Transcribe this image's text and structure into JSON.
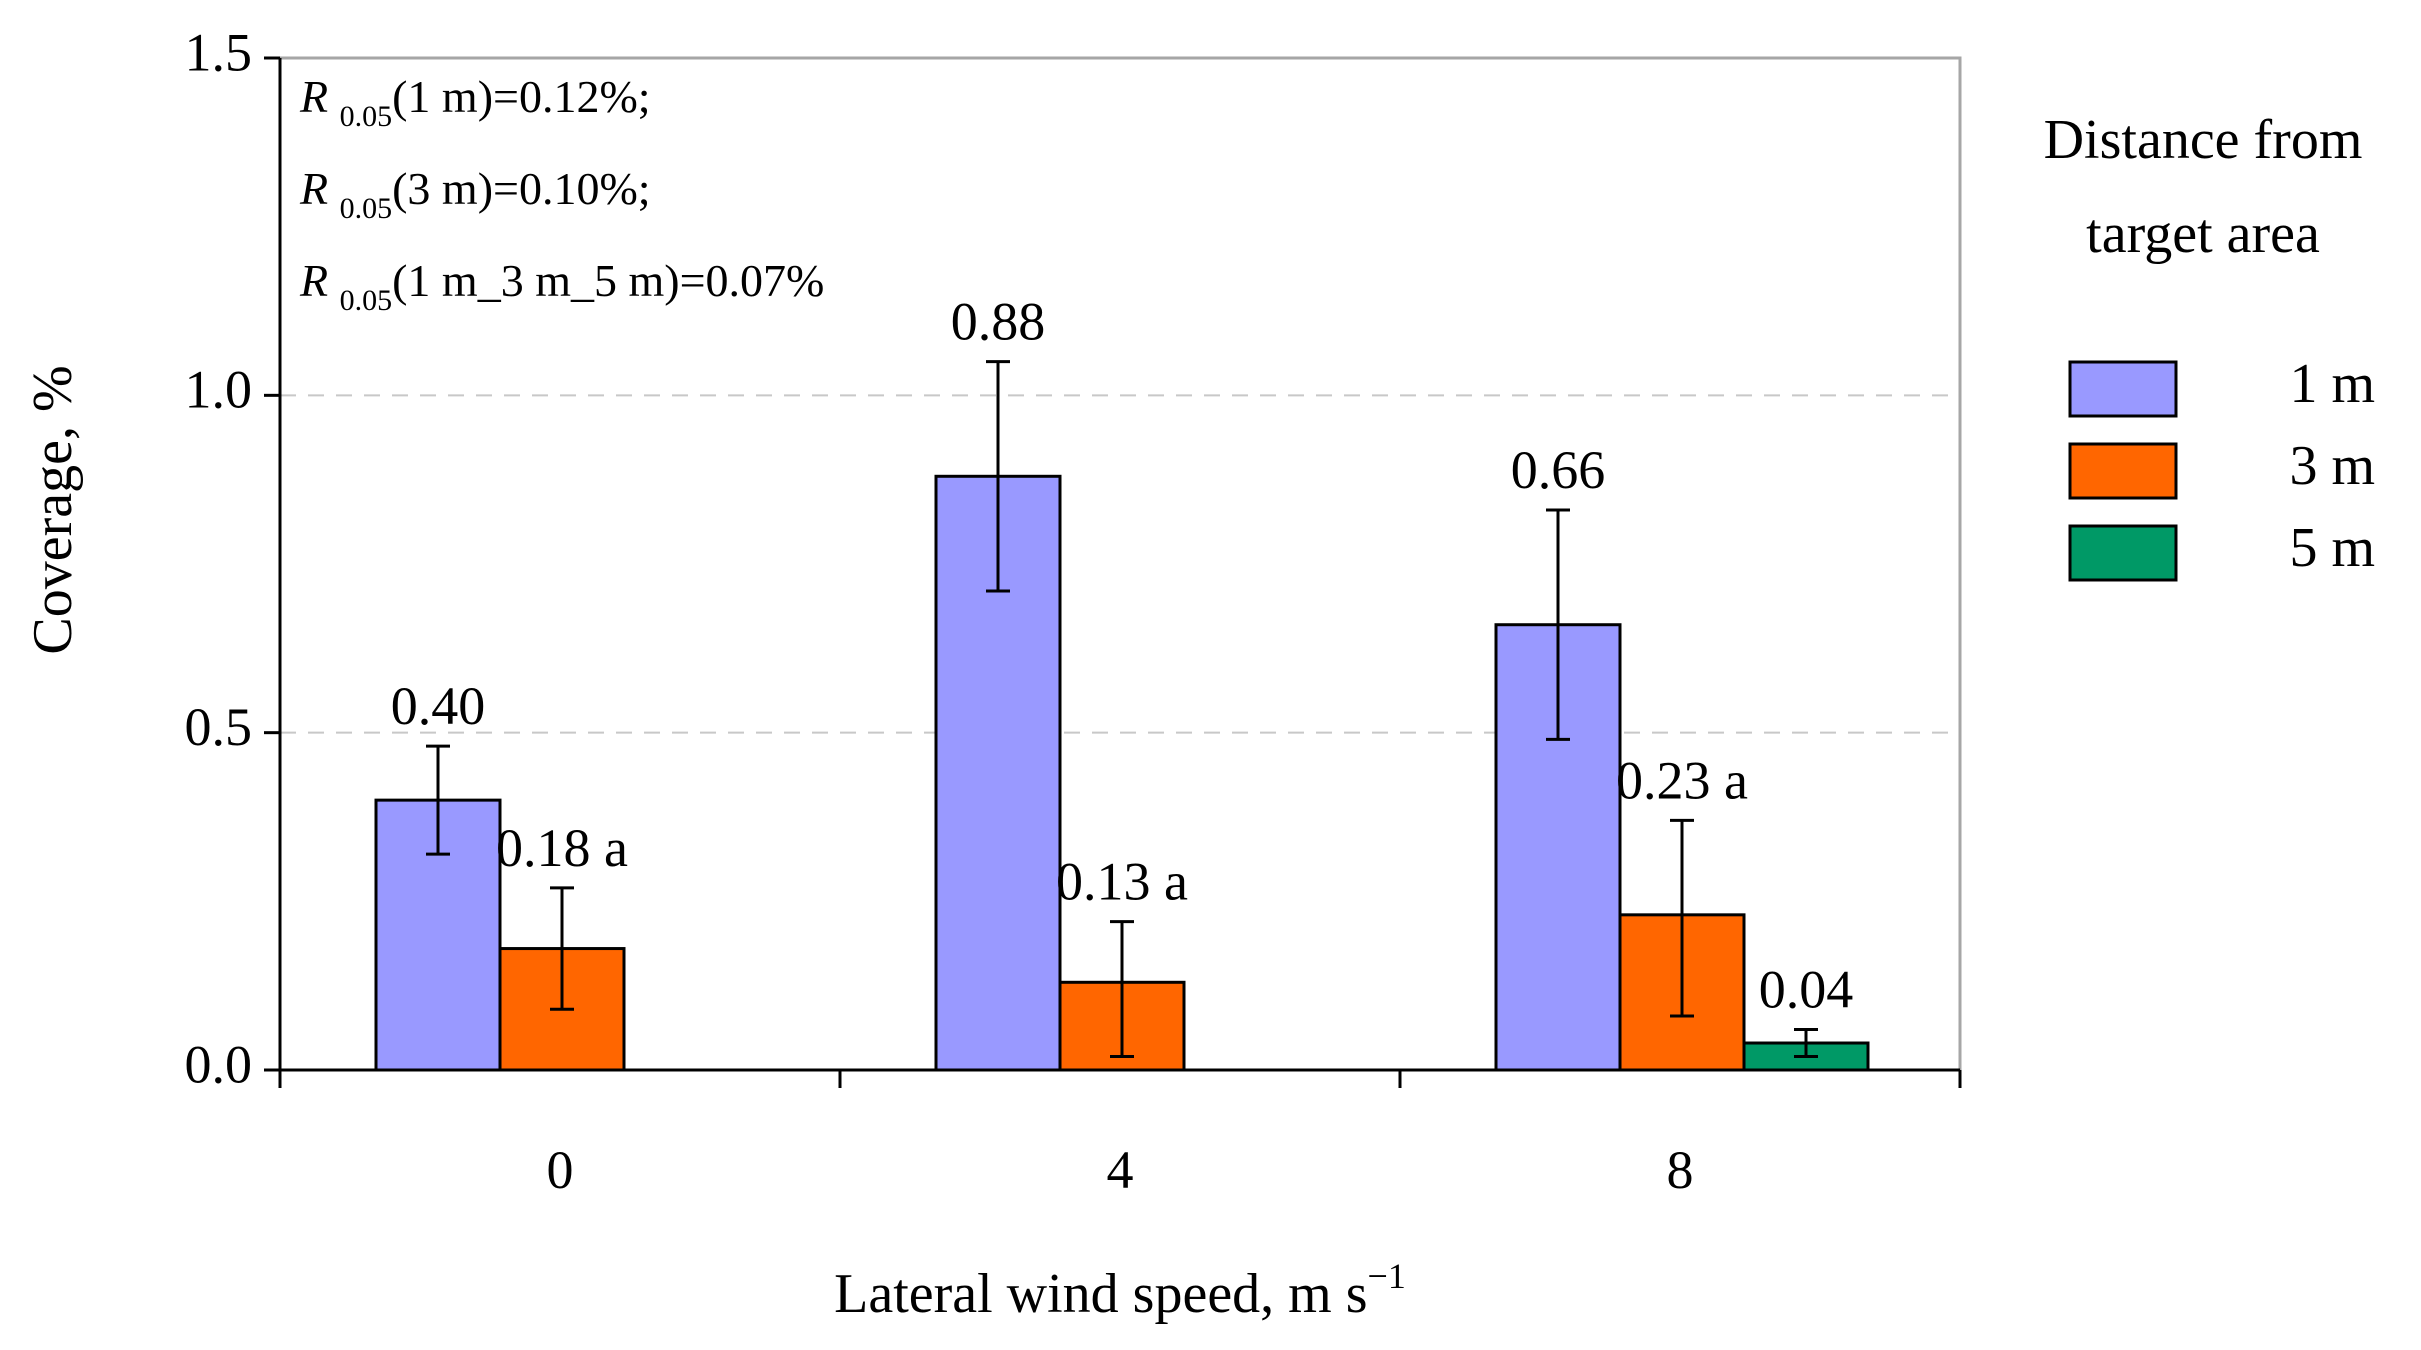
{
  "chart_data": {
    "type": "bar",
    "title": "",
    "xlabel": "Lateral wind speed, m s",
    "xlabel_superscript": "−1",
    "ylabel": "Coverage, %",
    "ylim": [
      0,
      1.5
    ],
    "y_ticks": [
      "0.0",
      "0.5",
      "1.0",
      "1.5"
    ],
    "y_tick_values": [
      0,
      0.5,
      1.0,
      1.5
    ],
    "grid_y": true,
    "categories": [
      "0",
      "4",
      "8"
    ],
    "legend_position": "right",
    "legend_title": [
      "Distance from",
      "target area"
    ],
    "series": [
      {
        "name": "1 m",
        "color": "#9999ff",
        "values": [
          0.4,
          0.88,
          0.66
        ],
        "error_low": [
          0.32,
          0.71,
          0.49
        ],
        "error_high": [
          0.48,
          1.05,
          0.83
        ],
        "labels": [
          "0.40",
          "0.88",
          "0.66"
        ]
      },
      {
        "name": "3 m",
        "color": "#ff6600",
        "values": [
          0.18,
          0.13,
          0.23
        ],
        "error_low": [
          0.09,
          0.02,
          0.08
        ],
        "error_high": [
          0.27,
          0.22,
          0.37
        ],
        "labels": [
          "0.18 a",
          "0.13 a",
          "0.23 a"
        ]
      },
      {
        "name": "5 m",
        "color": "#009966",
        "values": [
          0.0,
          0.0,
          0.04
        ],
        "error_low": [
          null,
          null,
          0.02
        ],
        "error_high": [
          null,
          null,
          0.06
        ],
        "labels": [
          "",
          "",
          "0.04"
        ]
      }
    ],
    "annotations": [
      {
        "symbol": "R",
        "subscript": "0.05",
        "text": "(1 m)=0.12%;"
      },
      {
        "symbol": "R",
        "subscript": "0.05",
        "text": "(3 m)=0.10%;"
      },
      {
        "symbol": "R",
        "subscript": "0.05",
        "text": "(1 m_3 m_5 m)=0.07%"
      }
    ]
  }
}
